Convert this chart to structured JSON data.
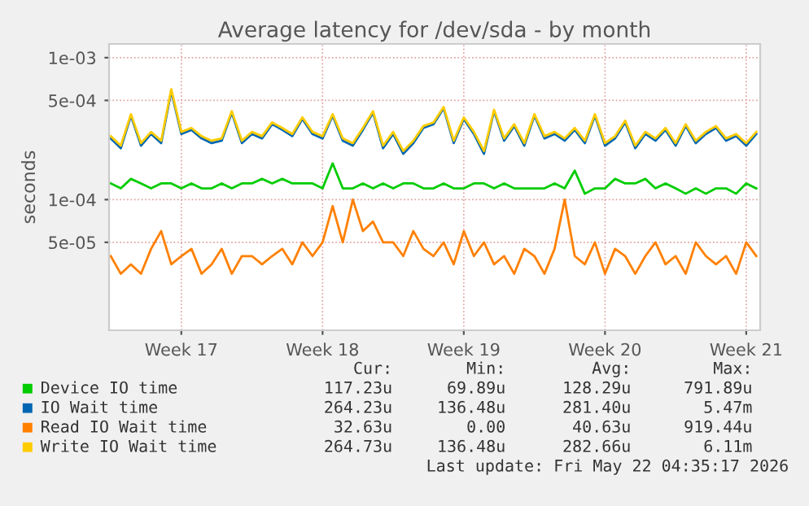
{
  "chart_data": {
    "type": "line",
    "title": "Average latency for /dev/sda - by month",
    "ylabel": "seconds",
    "log": "y",
    "ylim": [
      1.2e-05,
      0.00125
    ],
    "yticks": [
      {
        "value": 0.001,
        "label": "1e-03"
      },
      {
        "value": 0.0005,
        "label": "5e-04"
      },
      {
        "value": 0.0001,
        "label": "1e-04"
      },
      {
        "value": 5e-05,
        "label": "5e-05"
      }
    ],
    "xlim": [
      "2026-04-19T22:00",
      "2026-05-22T04:35"
    ],
    "xticks": [
      {
        "value": "2026-04-23T12:00",
        "label": "Week 17"
      },
      {
        "value": "2026-04-30T12:00",
        "label": "Week 18"
      },
      {
        "value": "2026-05-07T12:00",
        "label": "Week 19"
      },
      {
        "value": "2026-05-14T12:00",
        "label": "Week 20"
      },
      {
        "value": "2026-05-21T12:00",
        "label": "Week 21"
      }
    ],
    "grid": true,
    "legend": "bottom",
    "x": [
      "2026-04-20T00:00",
      "2026-04-20T12:00",
      "2026-04-21T00:00",
      "2026-04-21T12:00",
      "2026-04-22T00:00",
      "2026-04-22T12:00",
      "2026-04-23T00:00",
      "2026-04-23T12:00",
      "2026-04-24T00:00",
      "2026-04-24T12:00",
      "2026-04-25T00:00",
      "2026-04-25T12:00",
      "2026-04-26T00:00",
      "2026-04-26T12:00",
      "2026-04-27T00:00",
      "2026-04-27T12:00",
      "2026-04-28T00:00",
      "2026-04-28T12:00",
      "2026-04-29T00:00",
      "2026-04-29T12:00",
      "2026-04-30T00:00",
      "2026-04-30T12:00",
      "2026-05-01T00:00",
      "2026-05-01T12:00",
      "2026-05-02T00:00",
      "2026-05-02T12:00",
      "2026-05-03T00:00",
      "2026-05-03T12:00",
      "2026-05-04T00:00",
      "2026-05-04T12:00",
      "2026-05-05T00:00",
      "2026-05-05T12:00",
      "2026-05-06T00:00",
      "2026-05-06T12:00",
      "2026-05-07T00:00",
      "2026-05-07T12:00",
      "2026-05-08T00:00",
      "2026-05-08T12:00",
      "2026-05-09T00:00",
      "2026-05-09T12:00",
      "2026-05-10T00:00",
      "2026-05-10T12:00",
      "2026-05-11T00:00",
      "2026-05-11T12:00",
      "2026-05-12T00:00",
      "2026-05-12T12:00",
      "2026-05-13T00:00",
      "2026-05-13T12:00",
      "2026-05-14T00:00",
      "2026-05-14T12:00",
      "2026-05-15T00:00",
      "2026-05-15T12:00",
      "2026-05-16T00:00",
      "2026-05-16T12:00",
      "2026-05-17T00:00",
      "2026-05-17T12:00",
      "2026-05-18T00:00",
      "2026-05-18T12:00",
      "2026-05-19T00:00",
      "2026-05-19T12:00",
      "2026-05-20T00:00",
      "2026-05-20T12:00",
      "2026-05-21T00:00",
      "2026-05-21T12:00",
      "2026-05-22T00:00"
    ],
    "series": [
      {
        "name": "Device IO time",
        "color": "#00cc00",
        "values": [
          0.00013,
          0.00012,
          0.00014,
          0.00013,
          0.00012,
          0.00013,
          0.00013,
          0.00012,
          0.00013,
          0.00012,
          0.00012,
          0.00013,
          0.00012,
          0.00013,
          0.00013,
          0.00014,
          0.00013,
          0.00014,
          0.00013,
          0.00013,
          0.00013,
          0.00012,
          0.00018,
          0.00012,
          0.00012,
          0.00013,
          0.00012,
          0.00013,
          0.00012,
          0.00013,
          0.00013,
          0.00012,
          0.00012,
          0.00013,
          0.00012,
          0.00012,
          0.00013,
          0.00013,
          0.00012,
          0.00013,
          0.00012,
          0.00012,
          0.00012,
          0.00012,
          0.00013,
          0.00012,
          0.00016,
          0.00011,
          0.00012,
          0.00012,
          0.00014,
          0.00013,
          0.00013,
          0.00014,
          0.00012,
          0.00013,
          0.00012,
          0.00011,
          0.00012,
          0.00011,
          0.00012,
          0.00012,
          0.00011,
          0.00013,
          0.00012
        ]
      },
      {
        "name": "IO Wait time",
        "color": "#0066b3",
        "values": [
          0.00027,
          0.00023,
          0.00039,
          0.00024,
          0.00029,
          0.00025,
          0.00058,
          0.00029,
          0.00031,
          0.00027,
          0.00025,
          0.00026,
          0.00041,
          0.00025,
          0.00029,
          0.00027,
          0.00034,
          0.00031,
          0.00028,
          0.00037,
          0.00029,
          0.00027,
          0.00039,
          0.00026,
          0.00024,
          0.00031,
          0.00041,
          0.00023,
          0.00029,
          0.00021,
          0.00025,
          0.00032,
          0.00034,
          0.00044,
          0.00025,
          0.00037,
          0.00029,
          0.00021,
          0.00042,
          0.00026,
          0.00033,
          0.00024,
          0.00039,
          0.00027,
          0.00029,
          0.00026,
          0.00031,
          0.00025,
          0.00039,
          0.00024,
          0.00027,
          0.00035,
          0.00023,
          0.00029,
          0.00026,
          0.00031,
          0.00024,
          0.00033,
          0.00025,
          0.00029,
          0.00032,
          0.00026,
          0.00028,
          0.00024,
          0.00029
        ]
      },
      {
        "name": "Read IO Wait time",
        "color": "#ff8000",
        "values": [
          4e-05,
          3e-05,
          3.5e-05,
          3e-05,
          4.5e-05,
          6e-05,
          3.5e-05,
          4e-05,
          4.5e-05,
          3e-05,
          3.5e-05,
          4.5e-05,
          3e-05,
          4e-05,
          4e-05,
          3.5e-05,
          4e-05,
          4.5e-05,
          3.5e-05,
          5e-05,
          4e-05,
          5e-05,
          9e-05,
          5e-05,
          0.0001,
          6e-05,
          7e-05,
          5e-05,
          5e-05,
          4e-05,
          6e-05,
          4.5e-05,
          4e-05,
          5e-05,
          3.5e-05,
          6e-05,
          4e-05,
          5e-05,
          3.5e-05,
          4e-05,
          3e-05,
          4.5e-05,
          4e-05,
          3e-05,
          4.5e-05,
          0.0001,
          4e-05,
          3.5e-05,
          5e-05,
          3e-05,
          4.5e-05,
          4e-05,
          3e-05,
          4e-05,
          5e-05,
          3.5e-05,
          4e-05,
          3e-05,
          5e-05,
          4e-05,
          3.5e-05,
          4e-05,
          3e-05,
          5e-05,
          4e-05
        ]
      },
      {
        "name": "Write IO Wait time",
        "color": "#ffcc00",
        "values": [
          0.00028,
          0.00024,
          0.0004,
          0.00025,
          0.0003,
          0.00026,
          0.0006,
          0.0003,
          0.00032,
          0.00028,
          0.00026,
          0.00027,
          0.00042,
          0.00026,
          0.0003,
          0.00028,
          0.00035,
          0.00032,
          0.00029,
          0.00038,
          0.0003,
          0.00028,
          0.0004,
          0.00027,
          0.00025,
          0.00032,
          0.00042,
          0.00024,
          0.0003,
          0.00022,
          0.00026,
          0.00033,
          0.00035,
          0.00045,
          0.00026,
          0.00038,
          0.0003,
          0.00022,
          0.00043,
          0.00027,
          0.00034,
          0.00025,
          0.0004,
          0.00028,
          0.0003,
          0.00027,
          0.00032,
          0.00026,
          0.0004,
          0.00025,
          0.00028,
          0.00036,
          0.00024,
          0.0003,
          0.00027,
          0.00032,
          0.00025,
          0.00034,
          0.00026,
          0.0003,
          0.00033,
          0.00027,
          0.00029,
          0.00025,
          0.0003
        ]
      }
    ],
    "annotations": [
      "Cur:",
      "Min:",
      "Avg:",
      "Max:",
      "117.23u",
      "69.89u",
      "128.29u",
      "791.89u",
      "264.23u",
      "136.48u",
      "281.40u",
      "5.47m",
      "32.63u",
      "0.00",
      "40.63u",
      "919.44u",
      "264.73u",
      "136.48u",
      "282.66u",
      "6.11m",
      "Last update: Fri May 22 04:35:17 2026"
    ]
  }
}
